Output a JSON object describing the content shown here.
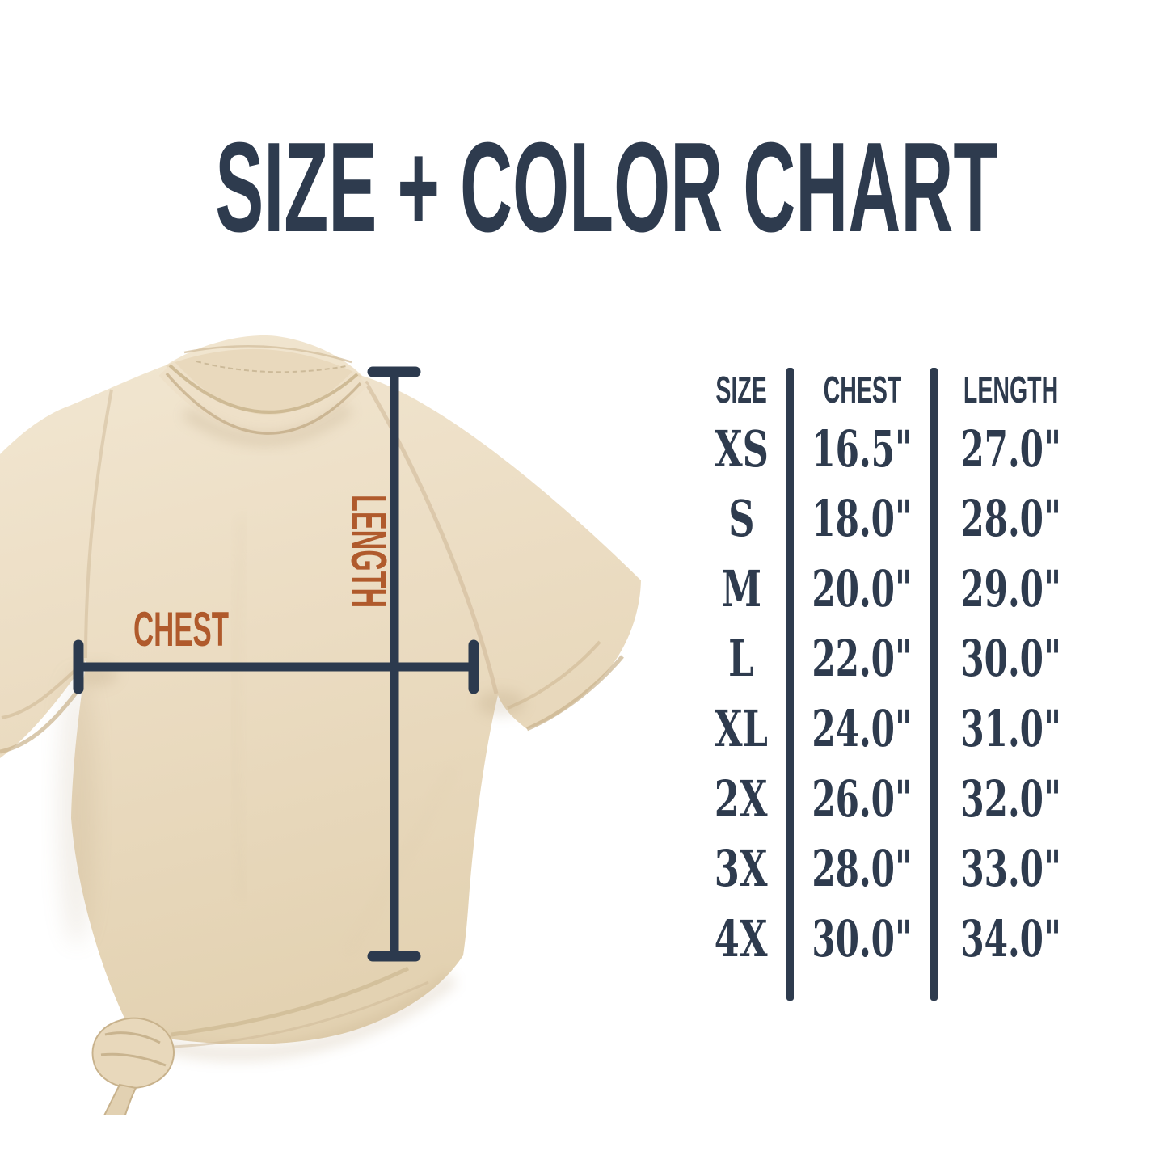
{
  "title": "SIZE + COLOR CHART",
  "diagram": {
    "chest_label": "CHEST",
    "length_label": "LENGTH"
  },
  "table": {
    "headers": [
      "SIZE",
      "CHEST",
      "LENGTH"
    ],
    "rows": [
      {
        "size": "XS",
        "chest": "16.5\"",
        "length": "27.0\""
      },
      {
        "size": "S",
        "chest": "18.0\"",
        "length": "28.0\""
      },
      {
        "size": "M",
        "chest": "20.0\"",
        "length": "29.0\""
      },
      {
        "size": "L",
        "chest": "22.0\"",
        "length": "30.0\""
      },
      {
        "size": "XL",
        "chest": "24.0\"",
        "length": "31.0\""
      },
      {
        "size": "2X",
        "chest": "26.0\"",
        "length": "32.0\""
      },
      {
        "size": "3X",
        "chest": "28.0\"",
        "length": "33.0\""
      },
      {
        "size": "4X",
        "chest": "30.0\"",
        "length": "34.0\""
      }
    ]
  },
  "chart_data": {
    "type": "table",
    "title": "SIZE + COLOR CHART",
    "columns": [
      "SIZE",
      "CHEST",
      "LENGTH"
    ],
    "categories": [
      "XS",
      "S",
      "M",
      "L",
      "XL",
      "2X",
      "3X",
      "4X"
    ],
    "series": [
      {
        "name": "CHEST",
        "unit": "inches",
        "values": [
          16.5,
          18.0,
          20.0,
          22.0,
          24.0,
          26.0,
          28.0,
          30.0
        ]
      },
      {
        "name": "LENGTH",
        "unit": "inches",
        "values": [
          27.0,
          28.0,
          29.0,
          30.0,
          31.0,
          32.0,
          33.0,
          34.0
        ]
      }
    ]
  },
  "colors": {
    "navy": "#2e3b4e",
    "rust": "#b05a2c",
    "shirt_tan": "#ebdcc2",
    "background": "#ffffff"
  }
}
